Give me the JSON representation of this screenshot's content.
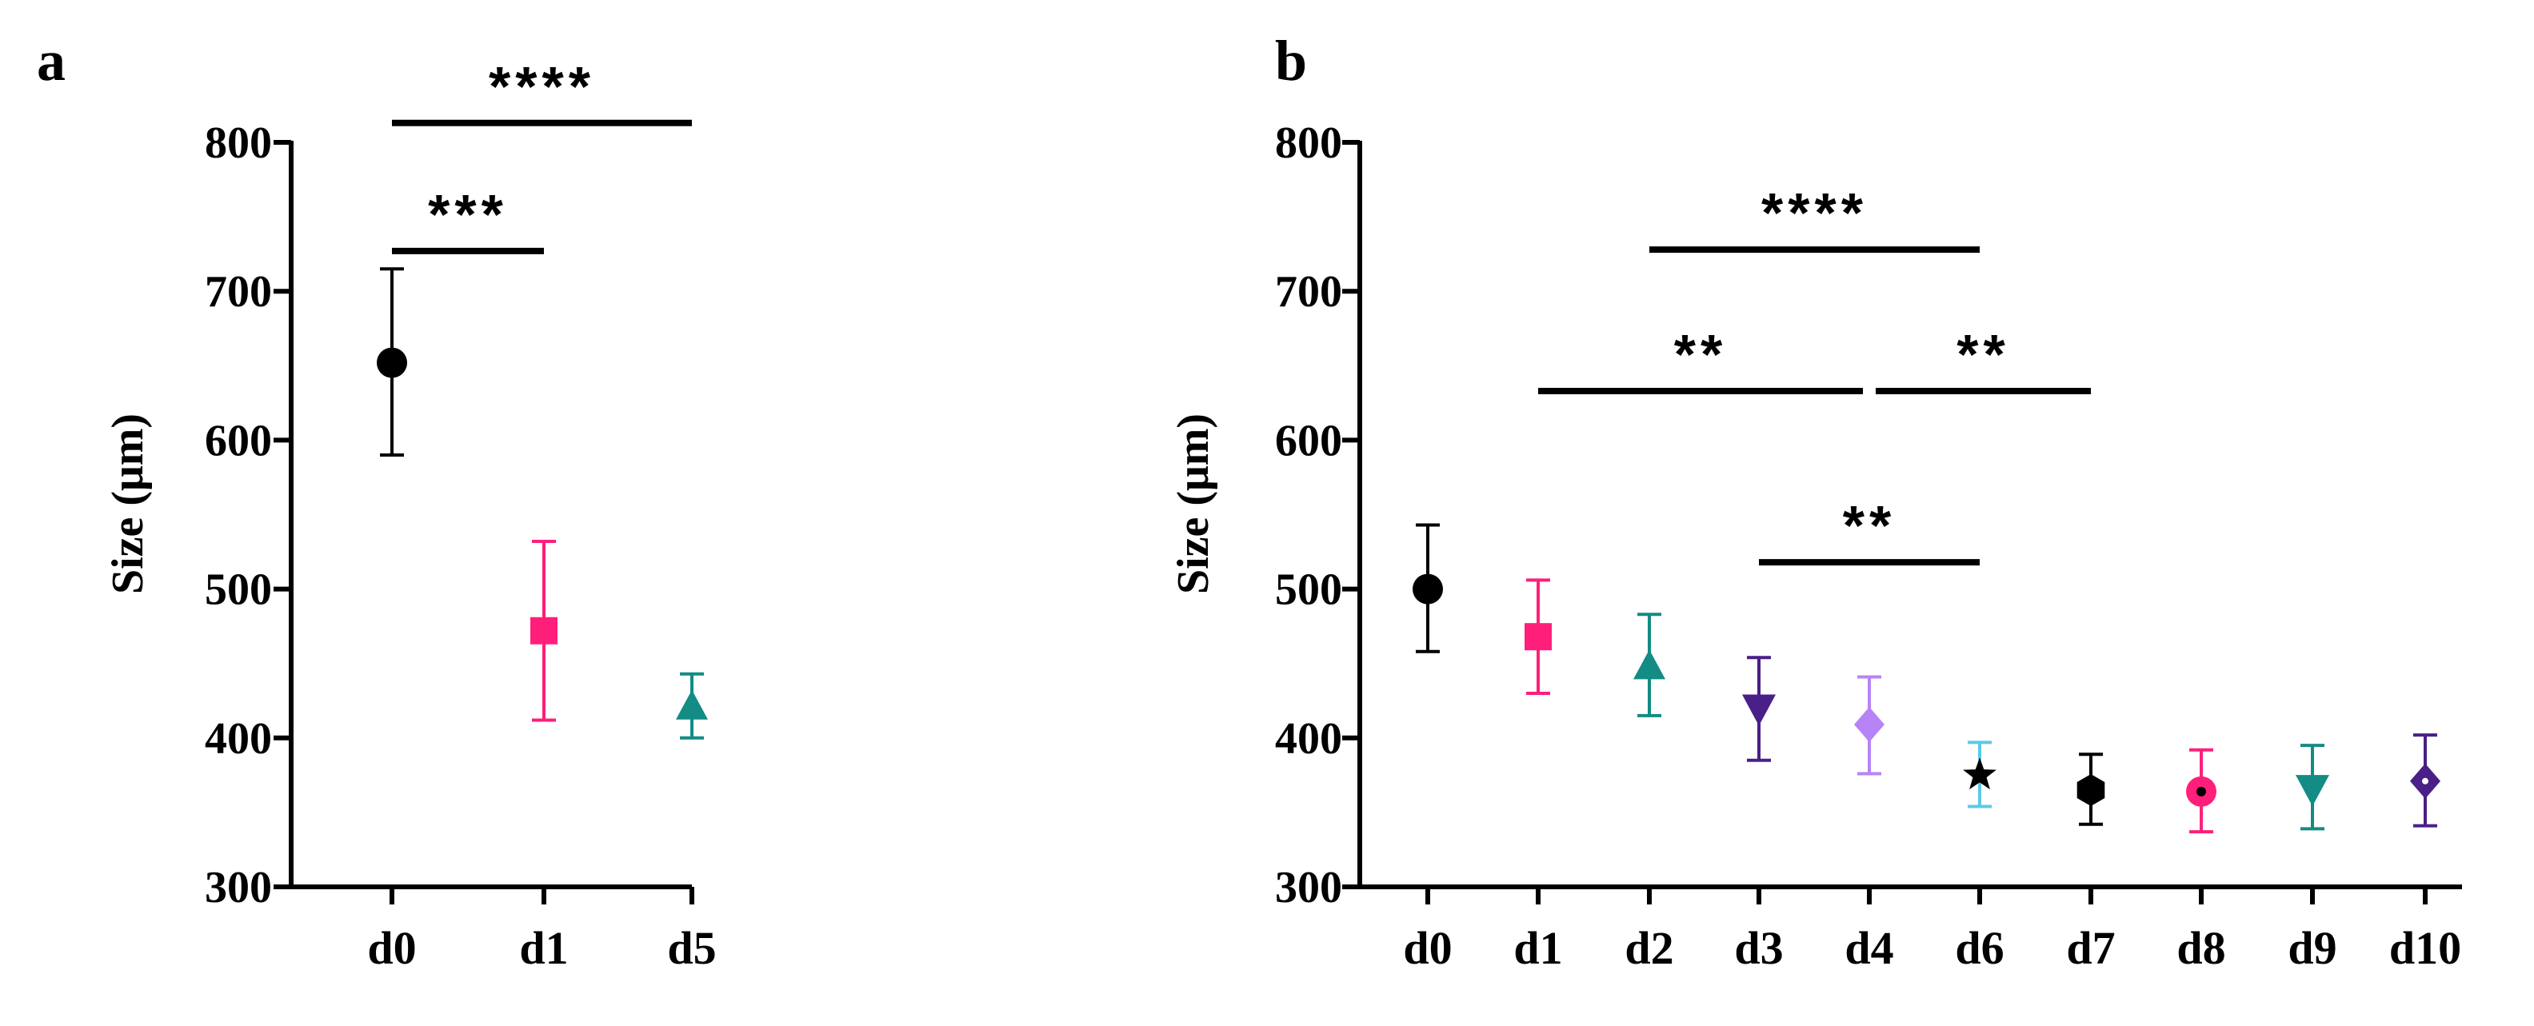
{
  "chart_data": [
    {
      "panel": "a",
      "type": "scatter",
      "ylabel": "Size (μm)",
      "ylim": [
        300,
        800
      ],
      "yticks": [
        "300",
        "400",
        "500",
        "600",
        "700",
        "800"
      ],
      "categories": [
        "d0",
        "d1",
        "d5"
      ],
      "points": [
        {
          "label": "d0",
          "mean": 652,
          "upper": 715,
          "lower": 590,
          "marker": "circle",
          "color": "#000000"
        },
        {
          "label": "d1",
          "mean": 472,
          "upper": 532,
          "lower": 412,
          "marker": "square",
          "color": "#ff1f7a"
        },
        {
          "label": "d5",
          "mean": 421,
          "upper": 443,
          "lower": 400,
          "marker": "triangle-up",
          "color": "#128c84"
        }
      ],
      "significance": [
        {
          "from": "d0",
          "to": "d1",
          "level": 727,
          "text": "***"
        },
        {
          "from": "d0",
          "to": "d5",
          "level": 813,
          "text": "****"
        }
      ]
    },
    {
      "panel": "b",
      "type": "scatter",
      "ylabel": "Size (μm)",
      "ylim": [
        300,
        800
      ],
      "yticks": [
        "300",
        "400",
        "500",
        "600",
        "700",
        "800"
      ],
      "categories": [
        "d0",
        "d1",
        "d2",
        "d3",
        "d4",
        "d6",
        "d7",
        "d8",
        "d9",
        "d10"
      ],
      "points": [
        {
          "label": "d0",
          "mean": 500,
          "upper": 543,
          "lower": 458,
          "marker": "circle",
          "color": "#000000"
        },
        {
          "label": "d1",
          "mean": 468,
          "upper": 506,
          "lower": 430,
          "marker": "square",
          "color": "#ff1f7a"
        },
        {
          "label": "d2",
          "mean": 448,
          "upper": 483,
          "lower": 415,
          "marker": "triangle-up",
          "color": "#128c84"
        },
        {
          "label": "d3",
          "mean": 420,
          "upper": 454,
          "lower": 385,
          "marker": "triangle-down",
          "color": "#4a1f87"
        },
        {
          "label": "d4",
          "mean": 409,
          "upper": 441,
          "lower": 376,
          "marker": "diamond",
          "color": "#b784f7"
        },
        {
          "label": "d6",
          "mean": 375,
          "upper": 397,
          "lower": 354,
          "marker": "star",
          "color": "#000000",
          "error_color": "#5ec8e6"
        },
        {
          "label": "d7",
          "mean": 365,
          "upper": 389,
          "lower": 342,
          "marker": "hexagon",
          "color": "#000000"
        },
        {
          "label": "d8",
          "mean": 364,
          "upper": 392,
          "lower": 337,
          "marker": "circle-dot",
          "color": "#ff1f7a"
        },
        {
          "label": "d9",
          "mean": 366,
          "upper": 395,
          "lower": 339,
          "marker": "triangle-down",
          "color": "#128c84"
        },
        {
          "label": "d10",
          "mean": 371,
          "upper": 402,
          "lower": 341,
          "marker": "diamond-dot",
          "color": "#4a1f87"
        }
      ],
      "significance": [
        {
          "from": "d2",
          "to": "d6",
          "level": 728,
          "text": "****"
        },
        {
          "from": "d1",
          "to": "d4",
          "level": 633,
          "text": "**"
        },
        {
          "from": "d4",
          "to": "d7",
          "level": 633,
          "text": "**"
        },
        {
          "from": "d3",
          "to": "d6",
          "level": 518,
          "text": "**"
        }
      ]
    }
  ]
}
